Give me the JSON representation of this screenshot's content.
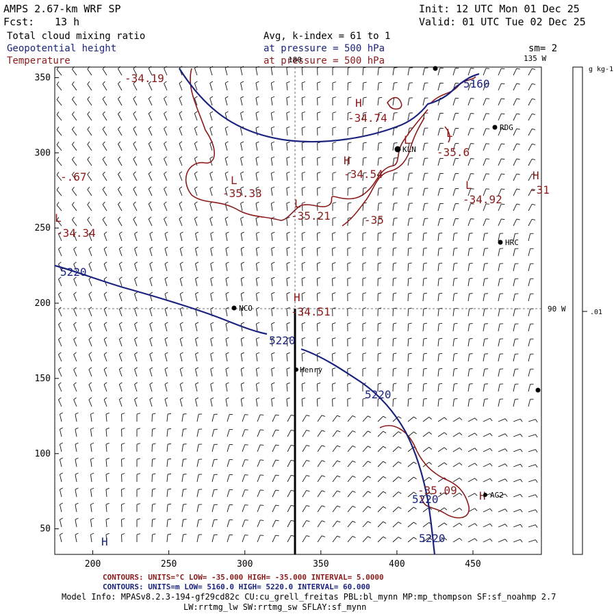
{
  "header": {
    "model": "AMPS 2.67-km WRF SP",
    "init": "Init: 12 UTC Mon 01 Dec 25",
    "fcst_label": "Fcst:",
    "fcst_value": "13 h",
    "valid": "Valid: 01 UTC Tue 02 Dec 25",
    "field1": "Total cloud mixing ratio",
    "field1_range": "Avg, k-index =  61 to   1",
    "field2": "Geopotential height",
    "field2_level": "at pressure =  500 hPa",
    "field2_smooth": "sm= 2",
    "field3": "Temperature",
    "field3_level": "at pressure =  500 hPa"
  },
  "colorbar": {
    "unit": "g kg-1",
    "tick": ".01"
  },
  "map_labels": {
    "meridian_180": "180",
    "meridian_135": "135 W",
    "meridian_90": "90 W"
  },
  "footer": {
    "temp_contours": "CONTOURS:  UNITS=°C  LOW=  -35.000        HIGH=  -35.000        INTERVAL=   5.0000",
    "height_contours": "CONTOURS:  UNITS=m  LOW=  5160.0        HIGH=  5220.0        INTERVAL=   60.000",
    "model_info": "Model Info: MPASv8.2.3-194-gf29cd82c CU:cu_grell_freitas PBL:bl_mynn MP:mp_thompson SF:sf_noahmp 2.7",
    "model_info2": "LW:rrtmg_lw SW:rrtmg_sw SFLAY:sf_mynn"
  },
  "chart_data": {
    "type": "map-contour",
    "x_ticks": [
      200,
      250,
      300,
      350,
      400,
      450
    ],
    "y_ticks": [
      50,
      100,
      150,
      200,
      250,
      300,
      350
    ],
    "xlim": [
      175,
      495
    ],
    "ylim": [
      33,
      357
    ],
    "height_contour_value": 5220,
    "height_contour_labels": [
      "5220",
      "5220",
      "5220",
      "5220",
      "5220",
      "5160"
    ],
    "temperature_labels": [
      "-34.19",
      "-34.74",
      "-35.6",
      "-34.54",
      "-35.33",
      "-35.21",
      "-35",
      "-34.92",
      "-34.34",
      "-34.51",
      "-35.09",
      "-.67",
      "-31"
    ],
    "hl_labels": [
      "H",
      "L",
      "H",
      "L",
      "L",
      "L",
      "H",
      "L",
      "H",
      "H",
      "H",
      "L"
    ],
    "stations": [
      "RDG",
      "KLN",
      "HRC",
      "NCO",
      "Henry",
      "AG2"
    ],
    "colors": {
      "temperature": "#8b1a1a",
      "height": "#1a237e",
      "barbs": "#000000",
      "grid": "#555555"
    }
  }
}
